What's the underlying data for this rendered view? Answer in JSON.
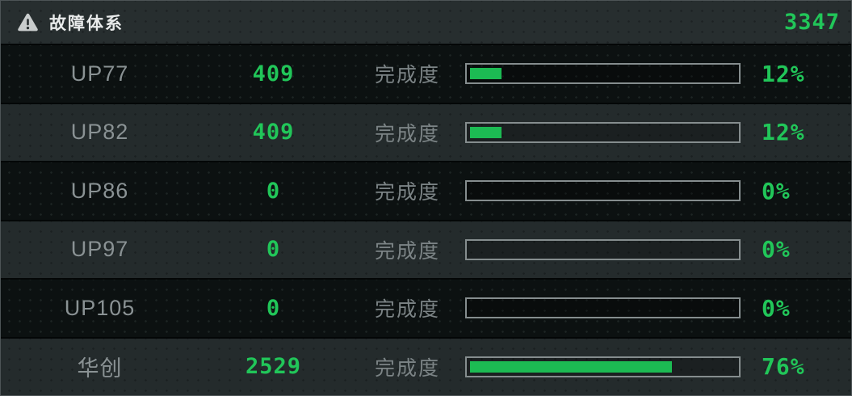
{
  "panel": {
    "header": {
      "icon": "warning-triangle-icon",
      "title": "故障体系",
      "total": "3347"
    },
    "progress_label": "完成度",
    "rows": [
      {
        "name": "UP77",
        "value": "409",
        "percent": 12,
        "percent_label": "12%"
      },
      {
        "name": "UP82",
        "value": "409",
        "percent": 12,
        "percent_label": "12%"
      },
      {
        "name": "UP86",
        "value": "0",
        "percent": 0,
        "percent_label": "0%"
      },
      {
        "name": "UP97",
        "value": "0",
        "percent": 0,
        "percent_label": "0%"
      },
      {
        "name": "UP105",
        "value": "0",
        "percent": 0,
        "percent_label": "0%"
      },
      {
        "name": "华创",
        "value": "2529",
        "percent": 76,
        "percent_label": "76%"
      }
    ],
    "colors": {
      "accent_green": "#21c659",
      "bar_fill": "#1cbb53",
      "text_gray": "#8a9294",
      "label_gray": "#7c8486",
      "bar_border": "#858d8e",
      "title_white": "#e9ebeb",
      "icon_color": "#c9cdcd"
    }
  }
}
